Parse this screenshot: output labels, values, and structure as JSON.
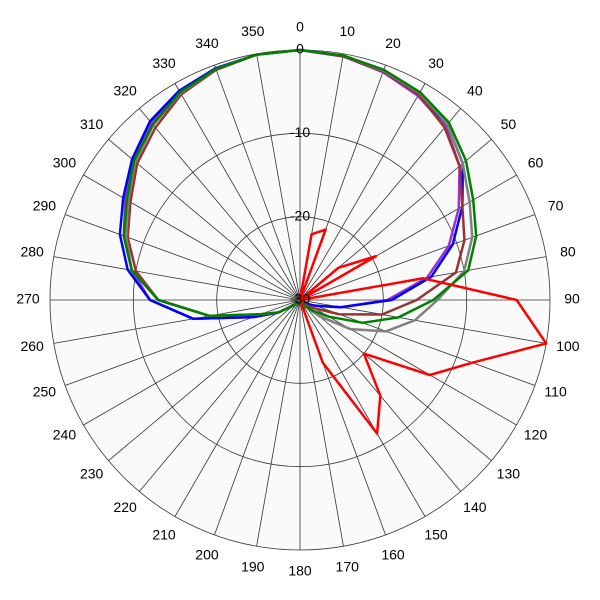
{
  "chart_data": {
    "type": "polar",
    "theta": [
      0,
      10,
      20,
      30,
      40,
      50,
      60,
      70,
      80,
      90,
      100,
      110,
      120,
      130,
      140,
      150,
      160,
      170,
      180,
      190,
      200,
      210,
      220,
      230,
      240,
      250,
      260,
      270,
      280,
      290,
      300,
      310,
      320,
      330,
      340,
      350
    ],
    "thetaticks": [
      0,
      10,
      20,
      30,
      40,
      50,
      60,
      70,
      80,
      90,
      100,
      110,
      120,
      130,
      140,
      150,
      160,
      170,
      180,
      190,
      200,
      210,
      220,
      230,
      240,
      250,
      260,
      270,
      280,
      290,
      300,
      310,
      320,
      330,
      340,
      350
    ],
    "rlim": [
      -30,
      0
    ],
    "rticks": [
      0,
      -10,
      -20,
      -30
    ],
    "series": [
      {
        "color": "#9b30d0",
        "values": [
          0,
          -0.3,
          -0.9,
          -1.7,
          -2.8,
          -5,
          -8,
          -11,
          -14.5,
          -19.5,
          -25,
          -28,
          -29,
          -30,
          -30,
          -30,
          -30,
          -30,
          -30,
          -30,
          -30,
          -30,
          -30,
          -29,
          -27,
          -24,
          -17,
          -12,
          -9.5,
          -7.5,
          -5.8,
          -4,
          -2.2,
          -1.1,
          -0.5,
          -0.1
        ]
      },
      {
        "color": "#0000ff",
        "values": [
          0,
          -0.3,
          -0.8,
          -1.5,
          -2.5,
          -4.5,
          -7.5,
          -10.5,
          -14,
          -19,
          -25,
          -28,
          -29,
          -30,
          -30,
          -30,
          -30,
          -30,
          -30,
          -30,
          -30,
          -30,
          -30,
          -29,
          -27,
          -24,
          -17,
          -12,
          -9,
          -7,
          -5.5,
          -3.7,
          -2,
          -1,
          -0.4,
          -0.1
        ]
      },
      {
        "color": "#993333",
        "values": [
          0,
          -0.3,
          -0.8,
          -1.5,
          -3,
          -5,
          -7.5,
          -9,
          -11,
          -16,
          -20,
          -25,
          -28,
          -29,
          -30,
          -30,
          -30,
          -30,
          -30,
          -30,
          -30,
          -30,
          -30,
          -29,
          -27,
          -25,
          -19,
          -13,
          -10,
          -8,
          -6.5,
          -4.5,
          -3,
          -1.5,
          -0.6,
          -0.1
        ]
      },
      {
        "color": "#808080",
        "values": [
          0,
          -0.2,
          -0.7,
          -1.3,
          -2.5,
          -4.5,
          -6.5,
          -8,
          -10,
          -13.5,
          -16,
          -19,
          -23,
          -27,
          -29,
          -30,
          -30,
          -30,
          -30,
          -30,
          -30,
          -30,
          -30,
          -29,
          -27,
          -25,
          -19,
          -13,
          -9.5,
          -7.8,
          -6.2,
          -4.2,
          -2.6,
          -1.3,
          -0.5,
          -0.1
        ]
      },
      {
        "color": "#008000",
        "values": [
          0,
          -0.2,
          -0.6,
          -1.2,
          -2.2,
          -4,
          -6,
          -7.5,
          -9.5,
          -14,
          -18,
          -22,
          -26,
          -28,
          -29,
          -30,
          -30,
          -30,
          -30,
          -30,
          -30,
          -30,
          -30,
          -29,
          -27,
          -25,
          -19,
          -13,
          -9.5,
          -7.5,
          -6,
          -4,
          -2.5,
          -1.2,
          -0.5,
          -0.1
        ]
      },
      {
        "color": "#ff0000",
        "values": [
          -30,
          -22,
          -21,
          -30,
          -30,
          -24,
          -19.5,
          -30,
          -15,
          -4,
          0,
          -8,
          -12,
          -20,
          -15,
          -11.5,
          -22,
          -30,
          -30,
          -30,
          -30,
          -30,
          -30,
          -30,
          -30,
          -30,
          -30,
          -30,
          -30,
          -30,
          -30,
          -30,
          -30,
          -30,
          -30,
          -30
        ]
      }
    ]
  }
}
